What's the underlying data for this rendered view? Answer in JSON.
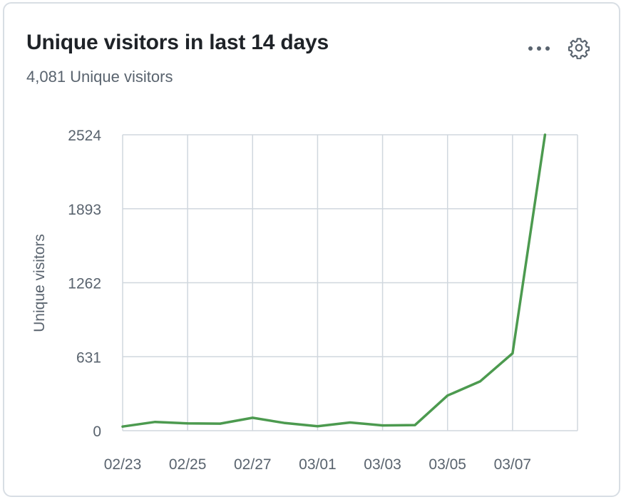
{
  "card": {
    "title": "Unique visitors in last 14 days",
    "subtitle": "4,081 Unique visitors",
    "more_icon": "kebab-horizontal-icon",
    "settings_icon": "gear-icon"
  },
  "colors": {
    "line": "#4c9a4f",
    "grid": "#d0d7de",
    "text": "#59636e"
  },
  "chart_data": {
    "type": "line",
    "title": "Unique visitors in last 14 days",
    "xlabel": "",
    "ylabel": "Unique visitors",
    "x": [
      "02/23",
      "02/24",
      "02/25",
      "02/26",
      "02/27",
      "02/28",
      "03/01",
      "03/02",
      "03/03",
      "03/04",
      "03/05",
      "03/06",
      "03/07",
      "03/08"
    ],
    "x_tick_labels": [
      "02/23",
      "02/25",
      "02/27",
      "03/01",
      "03/03",
      "03/05",
      "03/07"
    ],
    "y_ticks": [
      0,
      631,
      1262,
      1893,
      2524
    ],
    "ylim": [
      0,
      2524
    ],
    "grid": true,
    "series": [
      {
        "values": [
          35,
          75,
          62,
          60,
          110,
          65,
          38,
          70,
          45,
          48,
          300,
          420,
          660,
          2524
        ]
      }
    ]
  }
}
